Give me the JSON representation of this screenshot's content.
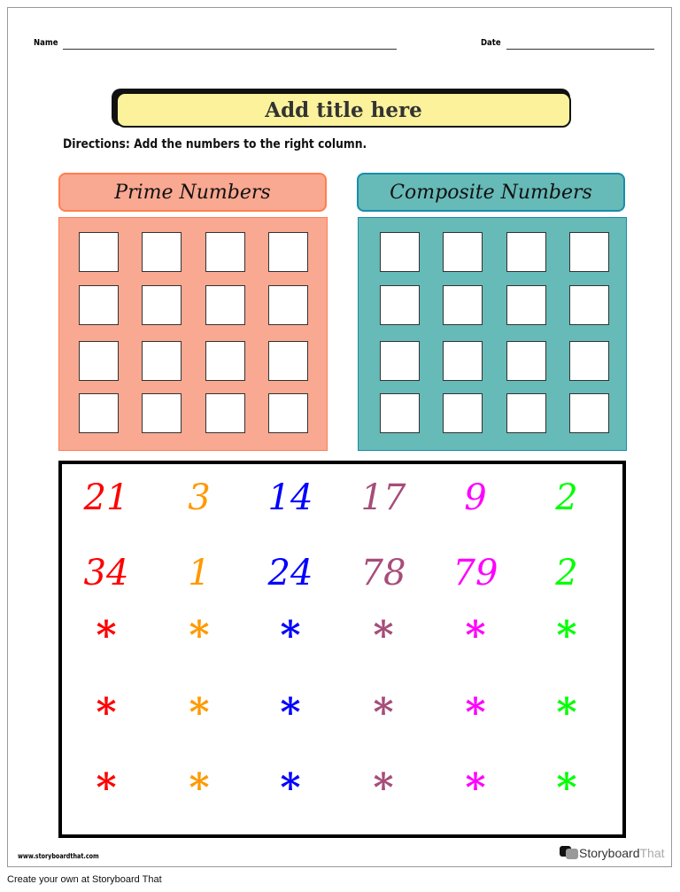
{
  "header": {
    "name_label": "Name",
    "date_label": "Date"
  },
  "title": "Add title here",
  "directions": "Directions: Add the numbers to the right column.",
  "columns": [
    {
      "label": "Prime Numbers",
      "header_color": "#f9a891",
      "header_border": "#ff7f50",
      "body_color": "#f9a891",
      "box_count": 16
    },
    {
      "label": "Composite Numbers",
      "header_color": "#66bab7",
      "header_border": "#1a8cad",
      "body_color": "#66bab7",
      "box_count": 16
    }
  ],
  "number_colors": [
    "#ff0000",
    "#ff9900",
    "#0000ff",
    "#a64d79",
    "#ff00ff",
    "#00ff00"
  ],
  "number_rows": [
    [
      "21",
      "3",
      "14",
      "17",
      "9",
      "2"
    ],
    [
      "34",
      "1",
      "24",
      "78",
      "79",
      "2"
    ],
    [
      "*",
      "*",
      "*",
      "*",
      "*",
      "*"
    ],
    [
      "*",
      "*",
      "*",
      "*",
      "*",
      "*"
    ],
    [
      "*",
      "*",
      "*",
      "*",
      "*",
      "*"
    ]
  ],
  "footer": {
    "url": "www.storyboardthat.com",
    "brand_main": "Storyboard",
    "brand_light": "That",
    "create": "Create your own at Storyboard That"
  }
}
